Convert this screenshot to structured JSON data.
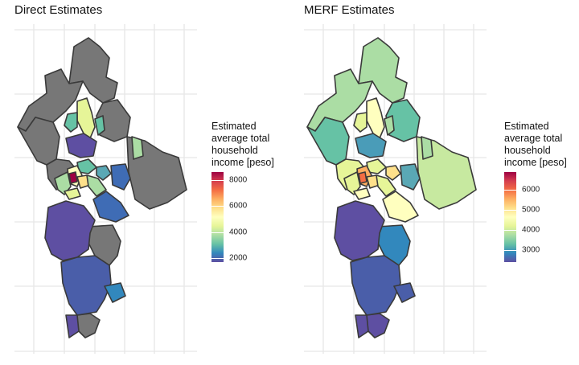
{
  "panels": [
    {
      "title": "Direct Estimates",
      "legend": {
        "title_lines": [
          "Estimated",
          "average total",
          "household",
          "income [peso]"
        ],
        "ticks": [
          8000,
          6000,
          4000,
          2000
        ],
        "range": [
          1700,
          8600
        ]
      }
    },
    {
      "title": "MERF Estimates",
      "legend": {
        "title_lines": [
          "Estimated",
          "average total",
          "household",
          "income [peso]"
        ],
        "ticks": [
          6000,
          5000,
          4000,
          3000
        ],
        "range": [
          2400,
          6900
        ]
      }
    }
  ],
  "colors": {
    "na_fill": "#777777",
    "border": "#3a3a3a",
    "gridline": "#e6e6e6",
    "spectral_scale": [
      "#5e4fa2",
      "#3288bd",
      "#66c2a5",
      "#abdda4",
      "#e6f598",
      "#ffffbf",
      "#fee08b",
      "#fdae61",
      "#f46d43",
      "#d53e4f",
      "#9e0142"
    ]
  }
}
